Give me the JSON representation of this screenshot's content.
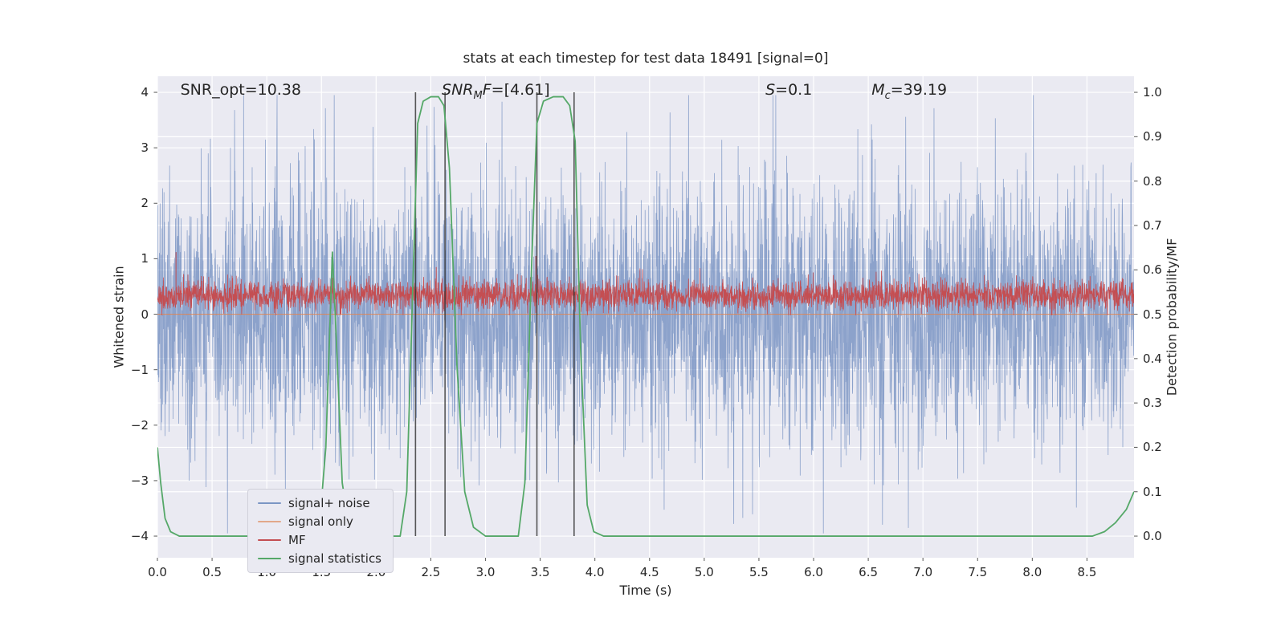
{
  "figure": {
    "title": "stats at each timestep for test data 18491 [signal=0]",
    "xlabel": "Time (s)",
    "ylabel_left": "Whitened strain",
    "ylabel_right": "Detection probability/MF"
  },
  "annotations": [
    {
      "text": "SNR_opt=10.38",
      "x": 0.21
    },
    {
      "base": "SNR",
      "sub": "M",
      "rest_italic": "F",
      "rest": "=[4.61]",
      "x": 2.6
    },
    {
      "base": "S",
      "rest": "=0.1",
      "x": 5.56
    },
    {
      "base": "M",
      "sub": "c",
      "rest": "=39.19",
      "x": 6.53
    }
  ],
  "chart_data": {
    "type": "line",
    "title": "stats at each timestep for test data 18491 [signal=0]",
    "xlabel": "Time (s)",
    "ylabel": "Whitened strain",
    "ylabel_right": "Detection probability/MF",
    "xlim": [
      0,
      8.93
    ],
    "ylim_left": [
      -4.39,
      4.29
    ],
    "right_axis": {
      "lim": [
        0,
        1
      ],
      "maps_to_left": [
        -4,
        4
      ]
    },
    "grid": true,
    "legend_position": "lower left",
    "xtick_values": [
      0,
      0.5,
      1,
      1.5,
      2,
      2.5,
      3,
      3.5,
      4,
      4.5,
      5,
      5.5,
      6,
      6.5,
      7,
      7.5,
      8,
      8.5
    ],
    "xtick_labels": [
      "0.0",
      "0.5",
      "1.0",
      "1.5",
      "2.0",
      "2.5",
      "3.0",
      "3.5",
      "4.0",
      "4.5",
      "5.0",
      "5.5",
      "6.0",
      "6.5",
      "7.0",
      "7.5",
      "8.0",
      "8.5"
    ],
    "ytick_left_values": [
      4,
      3,
      2,
      1,
      0,
      -1,
      -2,
      -3,
      -4
    ],
    "ytick_left_labels": [
      "4",
      "3",
      "2",
      "1",
      "0",
      "−1",
      "−2",
      "−3",
      "−4"
    ],
    "ytick_right_values": [
      1.0,
      0.9,
      0.8,
      0.7,
      0.6,
      0.5,
      0.4,
      0.3,
      0.2,
      0.1,
      0.0
    ],
    "ytick_right_labels": [
      "1.0",
      "0.9",
      "0.8",
      "0.7",
      "0.6",
      "0.5",
      "0.4",
      "0.3",
      "0.2",
      "0.1",
      "0.0"
    ],
    "series": [
      {
        "name": "signal+ noise",
        "kind": "noise",
        "axis": "left",
        "color": "#4C72B0",
        "alpha": 0.6,
        "seed": 1337,
        "n": 4000,
        "mean": 0,
        "std": 1.15,
        "tail": 0.05,
        "clip": [
          -3.95,
          3.95
        ]
      },
      {
        "name": "signal only",
        "kind": "flat",
        "axis": "left",
        "color": "#DD8452",
        "alpha": 0.85,
        "value": 0
      },
      {
        "name": "MF",
        "kind": "noise",
        "axis": "left",
        "color": "#C44E52",
        "alpha": 1,
        "seed": 2024,
        "n": 4000,
        "mean": 0.34,
        "std": 0.135,
        "tail": 0,
        "clip": [
          -0.02,
          1.12
        ],
        "spikes": [
          [
            0.17,
            1.12
          ],
          [
            2.55,
            0.85
          ],
          [
            3.46,
            1.05
          ]
        ]
      },
      {
        "name": "signal statistics",
        "kind": "curve",
        "axis": "right",
        "color": "#55A868",
        "points": [
          [
            0.0,
            0.2
          ],
          [
            0.03,
            0.12
          ],
          [
            0.07,
            0.04
          ],
          [
            0.12,
            0.01
          ],
          [
            0.2,
            0.0
          ],
          [
            1.4,
            0.0
          ],
          [
            1.48,
            0.02
          ],
          [
            1.54,
            0.2
          ],
          [
            1.6,
            0.64
          ],
          [
            1.64,
            0.42
          ],
          [
            1.69,
            0.12
          ],
          [
            1.76,
            0.01
          ],
          [
            1.85,
            0.0
          ],
          [
            2.22,
            0.0
          ],
          [
            2.28,
            0.1
          ],
          [
            2.34,
            0.6
          ],
          [
            2.38,
            0.93
          ],
          [
            2.43,
            0.98
          ],
          [
            2.5,
            0.99
          ],
          [
            2.57,
            0.99
          ],
          [
            2.62,
            0.97
          ],
          [
            2.67,
            0.83
          ],
          [
            2.74,
            0.38
          ],
          [
            2.81,
            0.1
          ],
          [
            2.89,
            0.02
          ],
          [
            3.0,
            0.0
          ],
          [
            3.3,
            0.0
          ],
          [
            3.36,
            0.12
          ],
          [
            3.42,
            0.6
          ],
          [
            3.47,
            0.93
          ],
          [
            3.53,
            0.98
          ],
          [
            3.62,
            0.99
          ],
          [
            3.71,
            0.99
          ],
          [
            3.77,
            0.97
          ],
          [
            3.82,
            0.89
          ],
          [
            3.87,
            0.42
          ],
          [
            3.93,
            0.07
          ],
          [
            3.99,
            0.01
          ],
          [
            4.08,
            0.0
          ],
          [
            8.55,
            0.0
          ],
          [
            8.66,
            0.01
          ],
          [
            8.76,
            0.03
          ],
          [
            8.86,
            0.06
          ],
          [
            8.93,
            0.1
          ]
        ]
      }
    ],
    "vlines": {
      "x": [
        2.36,
        2.63,
        3.47,
        3.81
      ],
      "color": "#2F2F2F",
      "alpha": 0.8
    },
    "legend": {
      "items": [
        {
          "label": "signal+ noise",
          "color": "rgba(76,114,176,0.7)"
        },
        {
          "label": "signal only",
          "color": "rgba(221,132,82,0.65)"
        },
        {
          "label": "MF",
          "color": "#C44E52"
        },
        {
          "label": "signal statistics",
          "color": "#55A868"
        }
      ]
    },
    "colors": {
      "axes_bg": "#EAEAF2",
      "grid": "#FFFFFF",
      "text": "#262626",
      "tick": "#666666"
    }
  }
}
